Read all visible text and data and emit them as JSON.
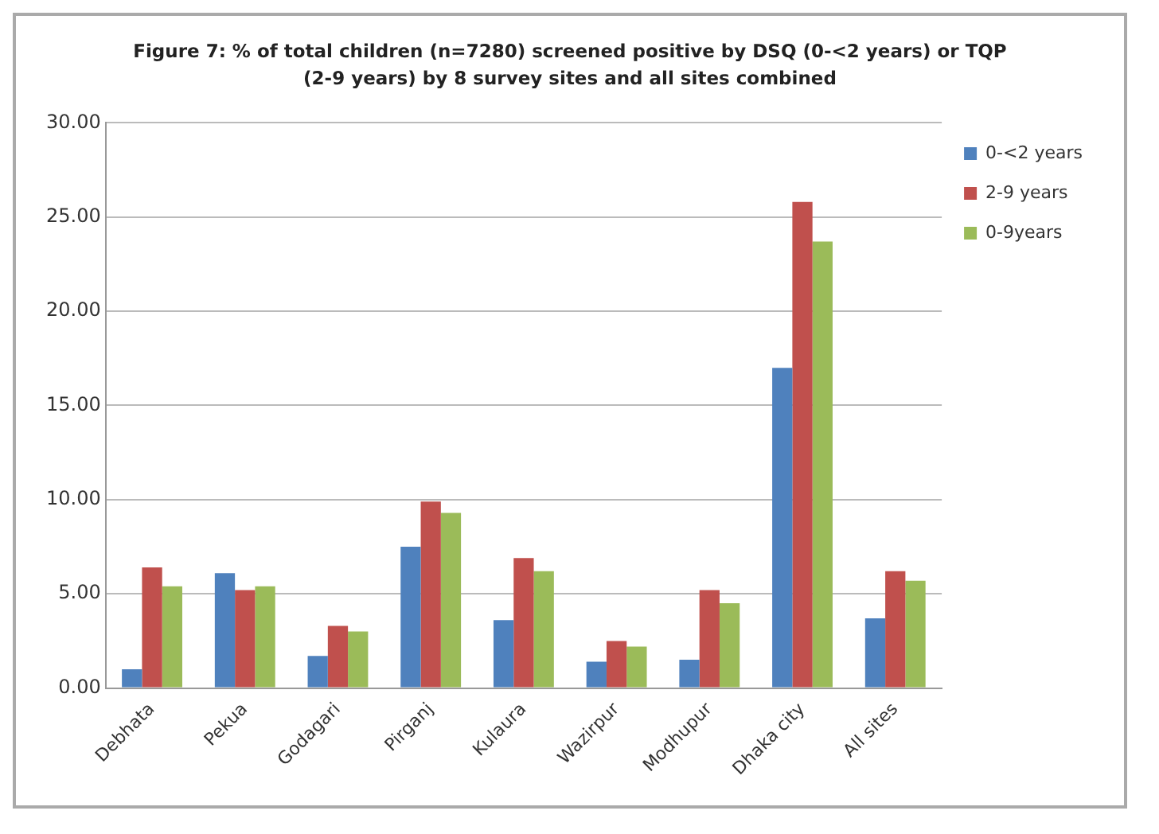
{
  "chart_data": {
    "type": "bar",
    "title": "Figure 7: % of total children (n=7280) screened positive by DSQ (0-<2 years)  or TQP (2-9 years)  by 8 survey sites and all sites combined",
    "categories": [
      "Debhata",
      "Pekua",
      "Godagari",
      "Pirganj",
      "Kulaura",
      "Wazirpur",
      "Modhupur",
      "Dhaka city",
      "All sites"
    ],
    "series": [
      {
        "name": "0-<2 years",
        "color": "#4f81bd",
        "values": [
          1.0,
          6.1,
          1.7,
          7.5,
          3.6,
          1.4,
          1.5,
          17.0,
          3.7
        ]
      },
      {
        "name": "2-9 years",
        "color": "#c0504d",
        "values": [
          6.4,
          5.2,
          3.3,
          9.9,
          6.9,
          2.5,
          5.2,
          25.8,
          6.2
        ]
      },
      {
        "name": "0-9years",
        "color": "#9bbb59",
        "values": [
          5.4,
          5.4,
          3.0,
          9.3,
          6.2,
          2.2,
          4.5,
          23.7,
          5.7
        ]
      }
    ],
    "ylim": [
      0,
      30
    ],
    "yticks": [
      {
        "value": 0,
        "label": "0.00"
      },
      {
        "value": 5,
        "label": "5.00"
      },
      {
        "value": 10,
        "label": "10.00"
      },
      {
        "value": 15,
        "label": "15.00"
      },
      {
        "value": 20,
        "label": "20.00"
      },
      {
        "value": 25,
        "label": "25.00"
      },
      {
        "value": 30,
        "label": "30.00"
      }
    ],
    "grid": "y",
    "legend": "top right"
  }
}
